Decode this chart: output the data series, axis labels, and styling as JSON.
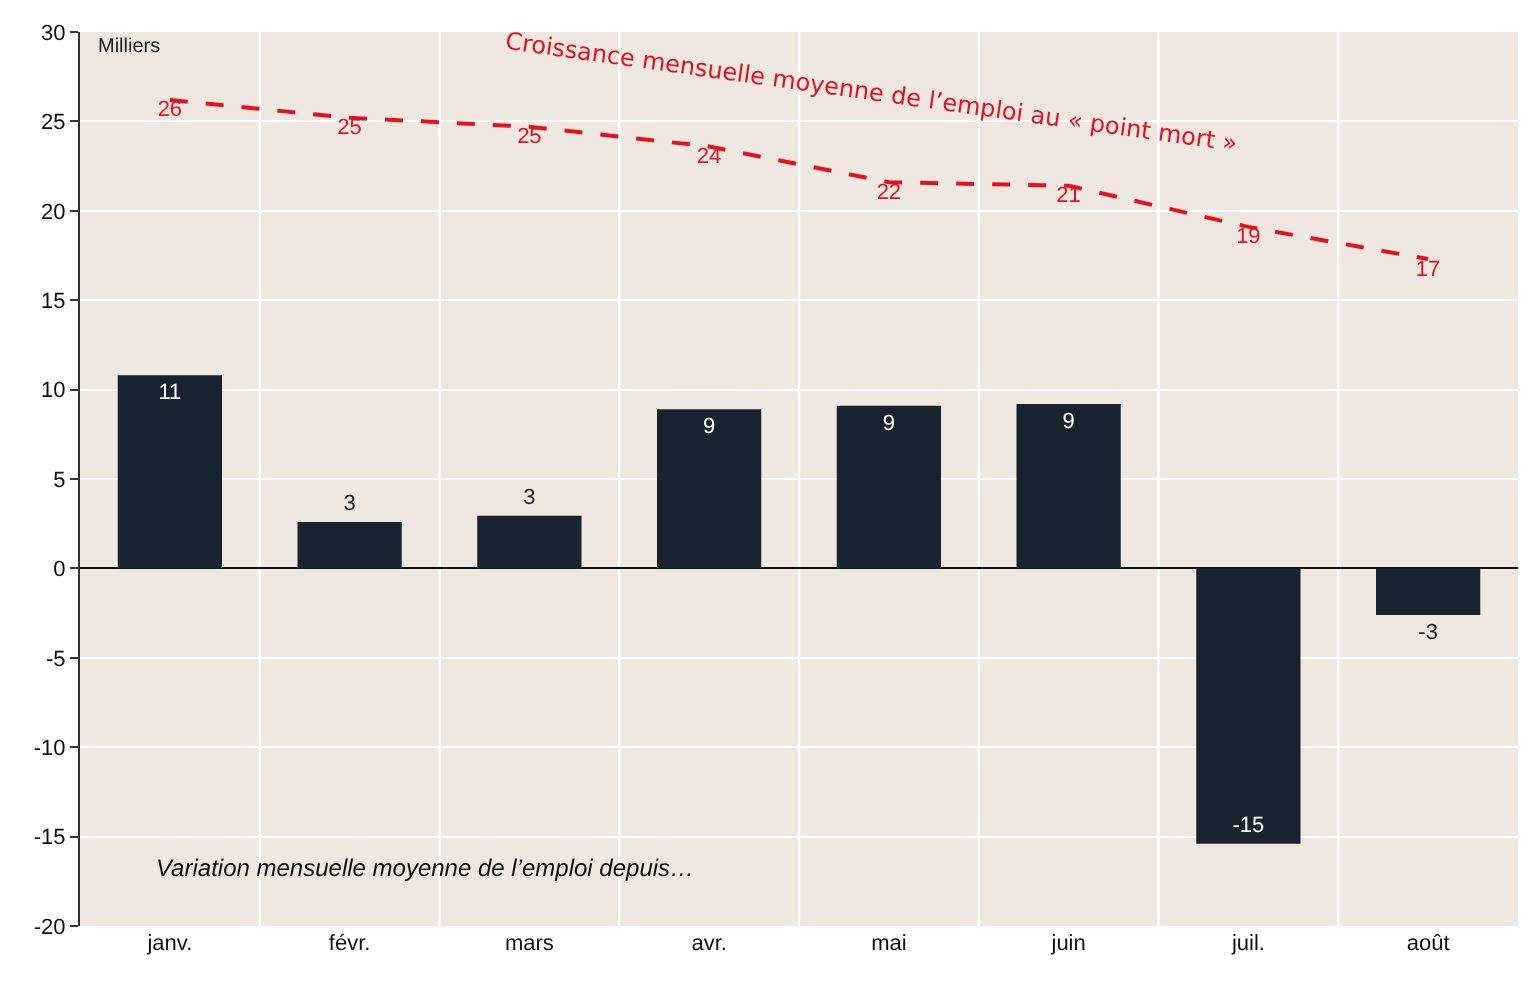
{
  "chart_data": {
    "type": "bar",
    "ylabel": "Milliers",
    "categories": [
      "janv.",
      "févr.",
      "mars",
      "avr.",
      "mai",
      "juin",
      "juil.",
      "août"
    ],
    "series": [
      {
        "name": "Variation mensuelle moyenne de l’emploi depuis…",
        "color": "#17242f",
        "values": [
          10.8,
          2.6,
          2.95,
          8.9,
          9.1,
          9.2,
          -15.4,
          -2.6
        ],
        "value_labels": [
          "11",
          "3",
          "3",
          "9",
          "9",
          "9",
          "-15",
          "-3"
        ]
      },
      {
        "name": "Croissance mensuelle moyenne de l’emploi au « point mort »",
        "type": "line",
        "color": "#e8101e",
        "line_style": "dashed",
        "values": [
          26.2,
          25.2,
          24.7,
          23.6,
          21.6,
          21.4,
          19.1,
          17.3
        ],
        "value_labels": [
          "26",
          "25",
          "25",
          "24",
          "22",
          "21",
          "19",
          "17"
        ]
      }
    ],
    "ylim": [
      -20,
      30
    ],
    "yticks": [
      -20,
      -15,
      -10,
      -5,
      0,
      5,
      10,
      15,
      20,
      25,
      30
    ],
    "grid": true,
    "legend": false
  }
}
